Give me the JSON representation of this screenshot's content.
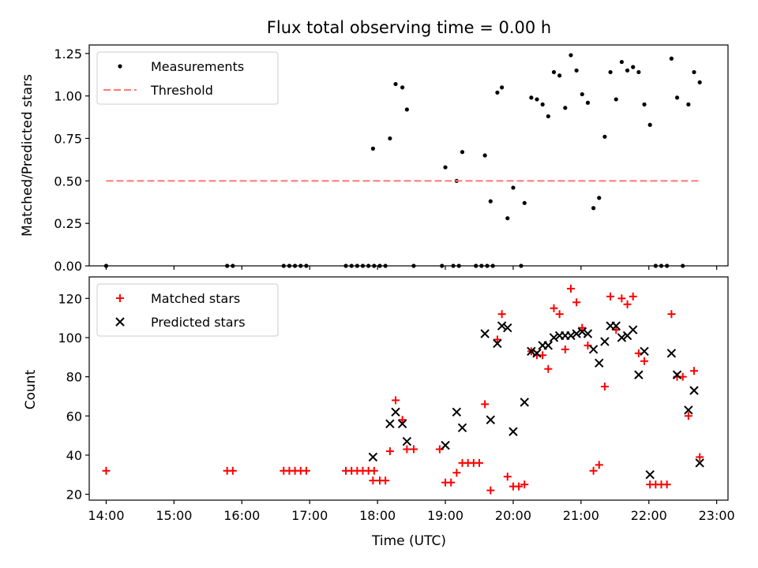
{
  "chart_data": [
    {
      "type": "scatter",
      "title": "Flux total observing time = 0.00 h",
      "xlabel": "",
      "ylabel": "Matched/Predicted stars",
      "xlim": [
        "13:45",
        "23:10"
      ],
      "ylim": [
        0,
        1.3
      ],
      "yticks": [
        0,
        0.25,
        0.5,
        0.75,
        1.0,
        1.25
      ],
      "ytick_labels": [
        "0.00",
        "0.25",
        "0.50",
        "0.75",
        "1.00",
        "1.25"
      ],
      "legend_position": "upper-left",
      "series": [
        {
          "name": "Measurements",
          "marker": "dot",
          "color": "#000000",
          "x": [
            "14:00",
            "15:47",
            "15:52",
            "16:37",
            "16:42",
            "16:47",
            "16:52",
            "16:57",
            "17:32",
            "17:37",
            "17:42",
            "17:47",
            "17:52",
            "17:57",
            "18:02",
            "18:07",
            "18:32",
            "18:57",
            "19:07",
            "19:12",
            "19:27",
            "19:32",
            "19:37",
            "19:42",
            "20:07",
            "17:56",
            "18:11",
            "18:16",
            "18:22",
            "18:26",
            "19:00",
            "19:10",
            "19:15",
            "19:35",
            "19:40",
            "19:46",
            "19:50",
            "19:55",
            "20:00",
            "20:10",
            "20:16",
            "20:21",
            "20:26",
            "20:31",
            "20:36",
            "20:41",
            "20:46",
            "20:51",
            "20:56",
            "21:01",
            "21:06",
            "21:11",
            "21:16",
            "21:21",
            "21:26",
            "21:31",
            "21:36",
            "21:41",
            "21:46",
            "21:51",
            "21:56",
            "22:01",
            "22:06",
            "22:11",
            "22:16",
            "22:20",
            "22:25",
            "22:30",
            "22:35",
            "22:40",
            "22:45"
          ],
          "y": [
            0,
            0,
            0,
            0,
            0,
            0,
            0,
            0,
            0,
            0,
            0,
            0,
            0,
            0,
            0,
            0,
            0,
            0,
            0,
            0,
            0,
            0,
            0,
            0,
            0,
            0.69,
            0.75,
            1.07,
            1.05,
            0.92,
            0.58,
            0.5,
            0.67,
            0.65,
            0.38,
            1.02,
            1.05,
            0.28,
            0.46,
            0.37,
            0.99,
            0.98,
            0.95,
            0.88,
            1.14,
            1.12,
            0.93,
            1.24,
            1.15,
            1.01,
            0.96,
            0.34,
            0.4,
            0.76,
            1.14,
            0.98,
            1.2,
            1.15,
            1.17,
            1.14,
            0.95,
            0.83,
            0,
            0,
            0,
            1.22,
            0.99,
            0,
            0.95,
            1.14,
            1.08
          ]
        },
        {
          "name": "Threshold",
          "marker": "dashed-line",
          "color": "#ff7f7f",
          "x": [
            "14:00",
            "22:45"
          ],
          "y": [
            0.5,
            0.5
          ]
        }
      ]
    },
    {
      "type": "scatter",
      "title": "",
      "xlabel": "Time (UTC)",
      "ylabel": "Count",
      "xlim": [
        "13:45",
        "23:10"
      ],
      "ylim": [
        17,
        131
      ],
      "yticks": [
        20,
        40,
        60,
        80,
        100,
        120
      ],
      "ytick_labels": [
        "20",
        "40",
        "60",
        "80",
        "100",
        "120"
      ],
      "xticks": [
        "14:00",
        "15:00",
        "16:00",
        "17:00",
        "18:00",
        "19:00",
        "20:00",
        "21:00",
        "22:00",
        "23:00"
      ],
      "legend_position": "upper-left",
      "series": [
        {
          "name": "Matched stars",
          "marker": "plus",
          "color": "#ff0000",
          "x": [
            "14:00",
            "15:47",
            "15:52",
            "16:37",
            "16:42",
            "16:47",
            "16:52",
            "16:57",
            "17:32",
            "17:37",
            "17:42",
            "17:47",
            "17:52",
            "17:57",
            "17:56",
            "18:02",
            "18:07",
            "18:11",
            "18:16",
            "18:22",
            "18:26",
            "18:32",
            "18:55",
            "19:00",
            "19:05",
            "19:10",
            "19:15",
            "19:20",
            "19:25",
            "19:30",
            "19:35",
            "19:40",
            "19:46",
            "19:50",
            "19:55",
            "20:00",
            "20:05",
            "20:10",
            "20:16",
            "20:21",
            "20:26",
            "20:31",
            "20:36",
            "20:41",
            "20:46",
            "20:51",
            "20:56",
            "21:01",
            "21:06",
            "21:11",
            "21:16",
            "21:21",
            "21:26",
            "21:31",
            "21:36",
            "21:41",
            "21:46",
            "21:51",
            "21:56",
            "22:01",
            "22:06",
            "22:11",
            "22:16",
            "22:20",
            "22:25",
            "22:30",
            "22:35",
            "22:40",
            "22:45"
          ],
          "y": [
            32,
            32,
            32,
            32,
            32,
            32,
            32,
            32,
            32,
            32,
            32,
            32,
            32,
            32,
            27,
            27,
            27,
            42,
            68,
            58,
            43,
            43,
            43,
            26,
            26,
            31,
            36,
            36,
            36,
            36,
            66,
            22,
            99,
            112,
            29,
            24,
            24,
            25,
            93,
            91,
            91,
            84,
            115,
            112,
            94,
            125,
            118,
            105,
            96,
            32,
            35,
            75,
            121,
            104,
            120,
            117,
            121,
            92,
            88,
            25,
            25,
            25,
            25,
            112,
            80,
            80,
            60,
            83,
            39
          ]
        },
        {
          "name": "Predicted stars",
          "marker": "x",
          "color": "#000000",
          "x": [
            "17:56",
            "18:11",
            "18:16",
            "18:22",
            "18:26",
            "19:00",
            "19:10",
            "19:15",
            "19:35",
            "19:40",
            "19:46",
            "19:50",
            "19:55",
            "20:00",
            "20:10",
            "20:16",
            "20:21",
            "20:26",
            "20:31",
            "20:36",
            "20:41",
            "20:46",
            "20:51",
            "20:56",
            "21:01",
            "21:06",
            "21:11",
            "21:16",
            "21:21",
            "21:26",
            "21:31",
            "21:36",
            "21:41",
            "21:46",
            "21:51",
            "21:56",
            "22:01",
            "22:20",
            "22:25",
            "22:35",
            "22:40",
            "22:45"
          ],
          "y": [
            39,
            56,
            62,
            56,
            47,
            45,
            62,
            54,
            102,
            58,
            97,
            106,
            105,
            52,
            67,
            93,
            92,
            96,
            96,
            100,
            101,
            101,
            101,
            102,
            103,
            102,
            94,
            87,
            98,
            106,
            106,
            100,
            101,
            104,
            81,
            93,
            30,
            92,
            81,
            63,
            73,
            36
          ]
        }
      ]
    }
  ]
}
